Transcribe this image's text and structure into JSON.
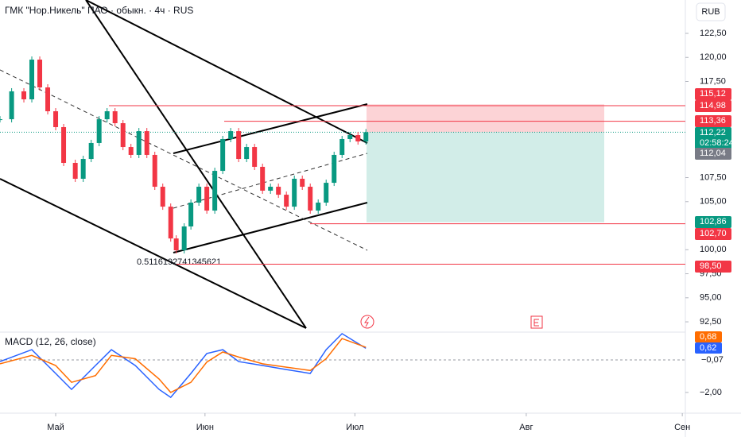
{
  "chart_data": {
    "type": "candlestick",
    "title": "ГМК \"Нор.Никель\" ПАО · обыкн. · 4ч · RUS",
    "currency": "RUB",
    "up_color": "#089981",
    "down_color": "#f23645",
    "x": [
      0,
      1.9,
      3.9,
      5.2,
      6.5,
      7.8,
      9.1,
      10.4,
      12.3,
      13.6,
      14.9,
      16.2,
      17.5,
      18.8,
      20.1,
      21.4,
      22.7,
      24,
      25.3,
      26.6,
      27.9,
      28.8,
      30.1,
      31.2,
      32.5,
      33.8,
      35.1,
      36.4,
      37.7,
      39,
      40.3,
      41.6,
      42.9,
      44.2,
      45.5,
      46.8,
      48.1,
      49.4,
      50.7,
      52,
      53.3,
      54.6,
      55.9,
      57.2,
      58.5,
      59.8
    ],
    "values": [
      113.57,
      116.47,
      115.64,
      119.77,
      116.88,
      114.4,
      112.75,
      109.03,
      107.38,
      109.44,
      111.1,
      113.57,
      114.4,
      113.16,
      110.68,
      109.86,
      112.33,
      109.86,
      106.55,
      104.48,
      101.17,
      99.94,
      102.42,
      104.9,
      106.55,
      104.07,
      108.2,
      111.51,
      112.33,
      109.44,
      110.68,
      108.62,
      106.14,
      106.55,
      105.72,
      104.48,
      107.38,
      106.55,
      104.07,
      104.9,
      106.96,
      109.86,
      111.51,
      111.92,
      111.26,
      112.22
    ],
    "xlim": [
      0,
      112
    ],
    "xticks": [
      {
        "value": 9.1,
        "label": "Май"
      },
      {
        "value": 33.5,
        "label": "Июн"
      },
      {
        "value": 58,
        "label": "Июл"
      },
      {
        "value": 86,
        "label": "Авг"
      },
      {
        "value": 111.5,
        "label": "Сен"
      }
    ],
    "ylim": [
      91.43,
      125.97
    ],
    "yticks": [
      {
        "value": 122.5,
        "label": "122,50"
      },
      {
        "value": 120,
        "label": "120,00"
      },
      {
        "value": 117.5,
        "label": "117,50"
      },
      {
        "value": 107.5,
        "label": "107,50"
      },
      {
        "value": 105,
        "label": "105,00"
      },
      {
        "value": 100,
        "label": "100,00"
      },
      {
        "value": 97.5,
        "label": "97,50"
      },
      {
        "value": 95,
        "label": "95,00"
      },
      {
        "value": 92.5,
        "label": "92,50"
      }
    ],
    "badges": [
      {
        "value": 115.12,
        "label": "115,12",
        "color": "#f23645"
      },
      {
        "value": 114.98,
        "label": "114,98",
        "color": "#f23645"
      },
      {
        "value": 113.36,
        "label": "113,36",
        "color": "#f23645"
      },
      {
        "value": 112.22,
        "label": "112,22",
        "color": "#089981",
        "countdown": "02:58:24"
      },
      {
        "value": 112.04,
        "label": "112,04",
        "color": "#787b86"
      },
      {
        "value": 102.86,
        "label": "102,86",
        "color": "#089981"
      },
      {
        "value": 102.7,
        "label": "102,70",
        "color": "#f23645"
      },
      {
        "value": 98.5,
        "label": "98,50",
        "color": "#f23645"
      }
    ],
    "annotation": "0.5116192741345621",
    "macd": {
      "title": "MACD (12, 26, close)",
      "ylim": [
        -3.23,
        1.58
      ],
      "yticks": [
        {
          "value": -2,
          "label": "−2,00"
        }
      ],
      "x": [
        0,
        5.2,
        9.1,
        11.7,
        15.6,
        18.2,
        22.1,
        26,
        27.9,
        31.2,
        33.8,
        36.4,
        39,
        42.9,
        46.8,
        50.7,
        53.3,
        55.9,
        59.8
      ],
      "series": [
        {
          "color": "#2962ff",
          "values": [
            -0.17,
            0.54,
            -0.87,
            -1.82,
            -0.4,
            0.54,
            -0.4,
            -1.82,
            -2.29,
            -0.87,
            0.31,
            0.54,
            -0.17,
            -0.4,
            -0.64,
            -0.87,
            0.54,
            1.49,
            0.62
          ],
          "badge": {
            "value": 0.62,
            "label": "0,62"
          }
        },
        {
          "color": "#ff6d00",
          "values": [
            -0.3,
            0.2,
            -0.4,
            -1.4,
            -1.0,
            0.2,
            0.0,
            -1.2,
            -2.0,
            -1.4,
            -0.2,
            0.4,
            0.1,
            -0.3,
            -0.5,
            -0.7,
            0.0,
            1.2,
            0.68
          ],
          "badge": {
            "value": 0.68,
            "label": "0,68"
          }
        }
      ],
      "histogram_last": {
        "value": -0.07,
        "label": "−0,07"
      }
    }
  }
}
